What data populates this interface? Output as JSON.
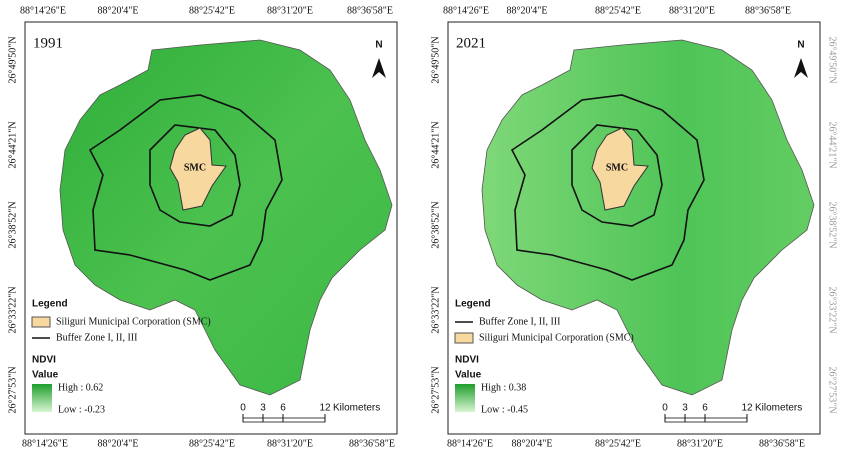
{
  "panels": [
    {
      "year": "1991",
      "north": "N",
      "top_ticks": [
        "88°14'26\"E",
        "88°20'4\"E",
        "88°25'42\"E",
        "88°31'20\"E",
        "88°36'58\"E"
      ],
      "bottom_ticks": [
        "88°14'26\"E",
        "88°20'4\"E",
        "88°25'42\"E",
        "88°31'20\"E",
        "88°36'58\"E"
      ],
      "left_ticks": [
        "26°49'50\"N",
        "26°44'21\"N",
        "26°38'52\"N",
        "26°33'22\"N",
        "26°27'53\"N"
      ],
      "right_ticks": [],
      "zone_label": "SMC",
      "legend": {
        "title": "Legend",
        "items": [
          "Siliguri Municipal Corporation (SMC)",
          "Buffer Zone I, II, III"
        ]
      },
      "ndvi": {
        "title": "NDVI",
        "value_label": "Value",
        "high": "High : 0.62",
        "low": "Low : -0.23"
      },
      "scale": {
        "ticks": [
          "0",
          "3",
          "6",
          "12"
        ],
        "unit": "Kilometers"
      }
    },
    {
      "year": "2021",
      "north": "N",
      "top_ticks": [
        "88°14'26\"E",
        "88°20'4\"E",
        "88°25'42\"E",
        "88°31'20\"E",
        "88°36'58\"E"
      ],
      "bottom_ticks": [
        "88°14'26\"E",
        "88°20'4\"E",
        "88°25'42\"E",
        "88°31'20\"E",
        "88°36'58\"E"
      ],
      "left_ticks": [
        "26°49'50\"N",
        "26°44'21\"N",
        "26°38'52\"N",
        "26°33'22\"N",
        "26°27'53\"N"
      ],
      "right_ticks": [
        "26°49'50\"N",
        "26°44'21\"N",
        "26°38'52\"N",
        "26°33'22\"N",
        "26°27'53\"N"
      ],
      "zone_label": "SMC",
      "legend": {
        "title": "Legend",
        "items": [
          "Buffer Zone I, II, III",
          "Siliguri Municipal Corporation (SMC)"
        ]
      },
      "ndvi": {
        "title": "NDVI",
        "value_label": "Value",
        "high": "High : 0.38",
        "low": "Low : -0.45"
      },
      "scale": {
        "ticks": [
          "0",
          "3",
          "6",
          "12"
        ],
        "unit": "Kilometers"
      }
    }
  ]
}
